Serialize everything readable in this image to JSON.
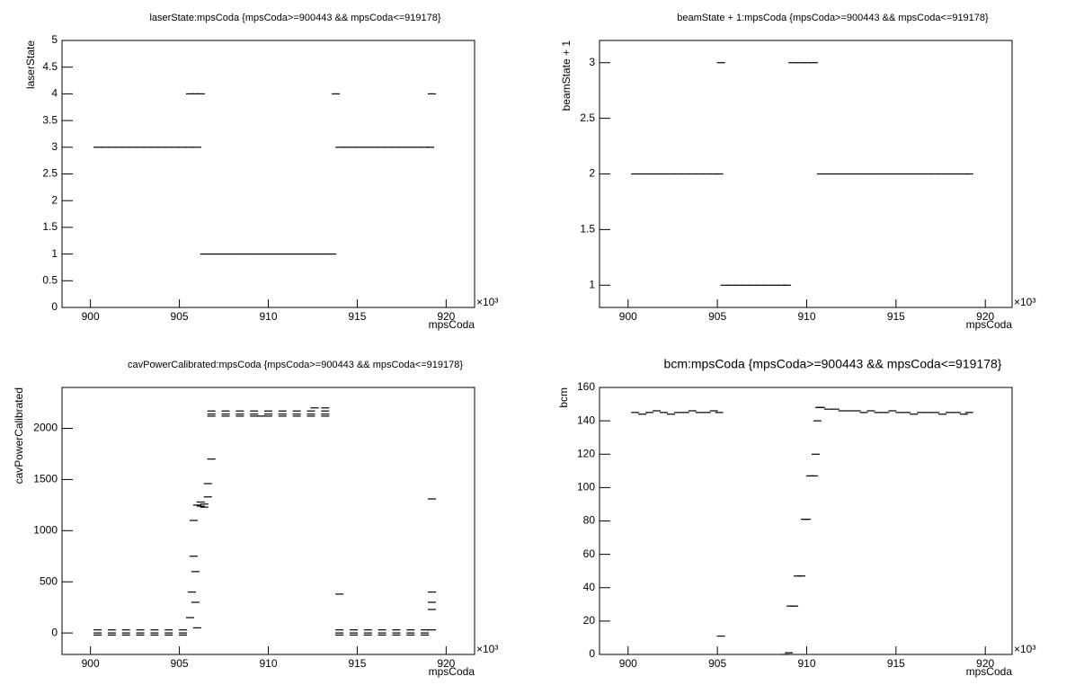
{
  "chart_data": [
    {
      "type": "scatter",
      "title": "laserState:mpsCoda {mpsCoda>=900443 && mpsCoda<=919178}",
      "x_label": "mpsCoda",
      "y_label": "laserState",
      "x_multiplier": "×10³",
      "color": "#000000",
      "xlim": [
        898.4,
        921.6
      ],
      "xticks": [
        900,
        905,
        910,
        915,
        920
      ],
      "ylim": [
        0,
        5
      ],
      "yticks": [
        0,
        0.5,
        1,
        1.5,
        2,
        2.5,
        3,
        3.5,
        4,
        4.5,
        5
      ],
      "x": [
        900.4,
        900.8,
        901.2,
        901.6,
        902.0,
        902.4,
        902.8,
        903.2,
        903.6,
        904.0,
        904.4,
        904.8,
        905.2,
        905.6,
        906.0,
        905.6,
        905.9,
        906.2,
        906.4,
        906.8,
        907.2,
        907.6,
        908.0,
        908.4,
        908.8,
        909.2,
        909.6,
        910.0,
        910.4,
        910.8,
        911.2,
        911.6,
        912.0,
        912.4,
        912.8,
        913.2,
        913.6,
        914.0,
        914.4,
        914.8,
        915.2,
        915.6,
        916.0,
        916.4,
        916.8,
        917.2,
        917.6,
        918.0,
        918.4,
        918.8,
        919.1,
        913.8,
        919.2
      ],
      "values": [
        3,
        3,
        3,
        3,
        3,
        3,
        3,
        3,
        3,
        3,
        3,
        3,
        3,
        3,
        3,
        4,
        4,
        4,
        1,
        1,
        1,
        1,
        1,
        1,
        1,
        1,
        1,
        1,
        1,
        1,
        1,
        1,
        1,
        1,
        1,
        1,
        1,
        3,
        3,
        3,
        3,
        3,
        3,
        3,
        3,
        3,
        3,
        3,
        3,
        3,
        3,
        4,
        4
      ]
    },
    {
      "type": "scatter",
      "title": "beamState + 1:mpsCoda {mpsCoda>=900443 && mpsCoda<=919178}",
      "x_label": "mpsCoda",
      "y_label": "beamState + 1",
      "x_multiplier": "×10³",
      "color": "#000000",
      "xlim": [
        898.4,
        921.5
      ],
      "xticks": [
        900,
        905,
        910,
        915,
        920
      ],
      "ylim": [
        0.8,
        3.2
      ],
      "yticks": [
        1,
        1.5,
        2,
        2.5,
        3
      ],
      "x": [
        900.4,
        900.8,
        901.2,
        901.6,
        902.0,
        902.4,
        902.8,
        903.2,
        903.6,
        904.0,
        904.4,
        904.8,
        905.1,
        905.2,
        905.4,
        905.8,
        906.2,
        906.6,
        907.0,
        907.4,
        907.8,
        908.2,
        908.6,
        908.9,
        909.2,
        909.6,
        910.0,
        910.4,
        910.8,
        911.2,
        911.6,
        912.0,
        912.4,
        912.8,
        913.2,
        913.6,
        914.0,
        914.4,
        914.8,
        915.2,
        915.6,
        916.0,
        916.4,
        916.8,
        917.2,
        917.6,
        918.0,
        918.4,
        918.8,
        919.1
      ],
      "values": [
        2,
        2,
        2,
        2,
        2,
        2,
        2,
        2,
        2,
        2,
        2,
        2,
        2,
        3,
        1,
        1,
        1,
        1,
        1,
        1,
        1,
        1,
        1,
        1,
        3,
        3,
        3,
        3,
        2,
        2,
        2,
        2,
        2,
        2,
        2,
        2,
        2,
        2,
        2,
        2,
        2,
        2,
        2,
        2,
        2,
        2,
        2,
        2,
        2,
        2
      ]
    },
    {
      "type": "scatter",
      "title": "cavPowerCalibrated:mpsCoda {mpsCoda>=900443 && mpsCoda<=919178}",
      "x_label": "mpsCoda",
      "y_label": "cavPowerCalibrated",
      "x_multiplier": "×10³",
      "color": "#000000",
      "xlim": [
        898.4,
        921.6
      ],
      "xticks": [
        900,
        905,
        910,
        915,
        920
      ],
      "ylim": [
        -210,
        2400
      ],
      "yticks": [
        0,
        500,
        1000,
        1500,
        2000
      ],
      "x": [
        900.4,
        901.2,
        902.0,
        902.8,
        903.6,
        904.4,
        905.2,
        900.4,
        901.2,
        902.0,
        902.8,
        903.6,
        904.4,
        905.2,
        900.4,
        901.2,
        902.0,
        902.8,
        903.6,
        904.4,
        905.2,
        905.6,
        905.7,
        905.8,
        905.8,
        905.9,
        905.9,
        906.0,
        906.0,
        906.2,
        906.2,
        906.4,
        906.4,
        906.6,
        906.6,
        906.8,
        906.8,
        907.6,
        908.4,
        909.2,
        910.0,
        910.8,
        911.6,
        912.4,
        913.2,
        906.8,
        907.6,
        908.4,
        909.2,
        910.0,
        910.8,
        911.6,
        912.4,
        913.2,
        906.8,
        907.6,
        908.4,
        909.2,
        910.0,
        910.8,
        911.6,
        912.4,
        913.2,
        912.6,
        913.2,
        909.6,
        914.0,
        914.8,
        915.6,
        916.4,
        917.2,
        918.0,
        918.8,
        914.0,
        914.8,
        915.6,
        916.4,
        917.2,
        918.0,
        918.8,
        914.0,
        914.8,
        915.6,
        916.4,
        917.2,
        918.0,
        918.8,
        914.0,
        919.2,
        919.2,
        919.2,
        919.2,
        919.2
      ],
      "values": [
        30,
        30,
        30,
        30,
        30,
        30,
        30,
        0,
        0,
        0,
        0,
        0,
        0,
        0,
        -20,
        -20,
        -20,
        -20,
        -20,
        -20,
        -20,
        150,
        400,
        750,
        1100,
        600,
        300,
        1250,
        50,
        1280,
        1240,
        1260,
        1230,
        1330,
        1460,
        1700,
        2170,
        2170,
        2170,
        2170,
        2170,
        2170,
        2170,
        2170,
        2170,
        2140,
        2140,
        2140,
        2140,
        2140,
        2140,
        2140,
        2140,
        2140,
        2120,
        2120,
        2120,
        2120,
        2120,
        2120,
        2120,
        2120,
        2120,
        2200,
        2200,
        2120,
        30,
        30,
        30,
        30,
        30,
        30,
        30,
        0,
        0,
        0,
        0,
        0,
        0,
        0,
        -20,
        -20,
        -20,
        -20,
        -20,
        -20,
        -20,
        380,
        1310,
        400,
        300,
        230,
        30
      ]
    },
    {
      "type": "scatter",
      "title": "bcm:mpsCoda {mpsCoda>=900443 && mpsCoda<=919178}",
      "x_label": "mpsCoda",
      "y_label": "bcm",
      "x_multiplier": "×10³",
      "color": "#000000",
      "xlim": [
        898.4,
        921.5
      ],
      "xticks": [
        900,
        905,
        910,
        915,
        920
      ],
      "ylim": [
        0,
        160
      ],
      "yticks": [
        0,
        20,
        40,
        60,
        80,
        100,
        120,
        140,
        160
      ],
      "x": [
        900.4,
        900.8,
        901.2,
        901.6,
        902.0,
        902.4,
        902.8,
        903.2,
        903.6,
        904.0,
        904.4,
        904.8,
        905.1,
        905.2,
        908.8,
        909.0,
        909.1,
        909.3,
        909.5,
        909.7,
        909.9,
        910.0,
        910.2,
        910.4,
        910.5,
        910.6,
        910.7,
        910.8,
        911.2,
        911.6,
        912.0,
        912.4,
        912.8,
        913.2,
        913.6,
        914.0,
        914.4,
        914.8,
        915.2,
        915.6,
        916.0,
        916.4,
        916.8,
        917.2,
        917.6,
        918.0,
        918.4,
        918.8,
        919.1
      ],
      "values": [
        145,
        144,
        145,
        146,
        145,
        144,
        145,
        145,
        146,
        145,
        145,
        146,
        145,
        11,
        0,
        1,
        29,
        29,
        47,
        47,
        81,
        81,
        107,
        107,
        120,
        140,
        148,
        148,
        147,
        147,
        146,
        146,
        146,
        145,
        146,
        145,
        145,
        146,
        145,
        145,
        144,
        145,
        145,
        145,
        144,
        145,
        145,
        144,
        145
      ]
    }
  ]
}
